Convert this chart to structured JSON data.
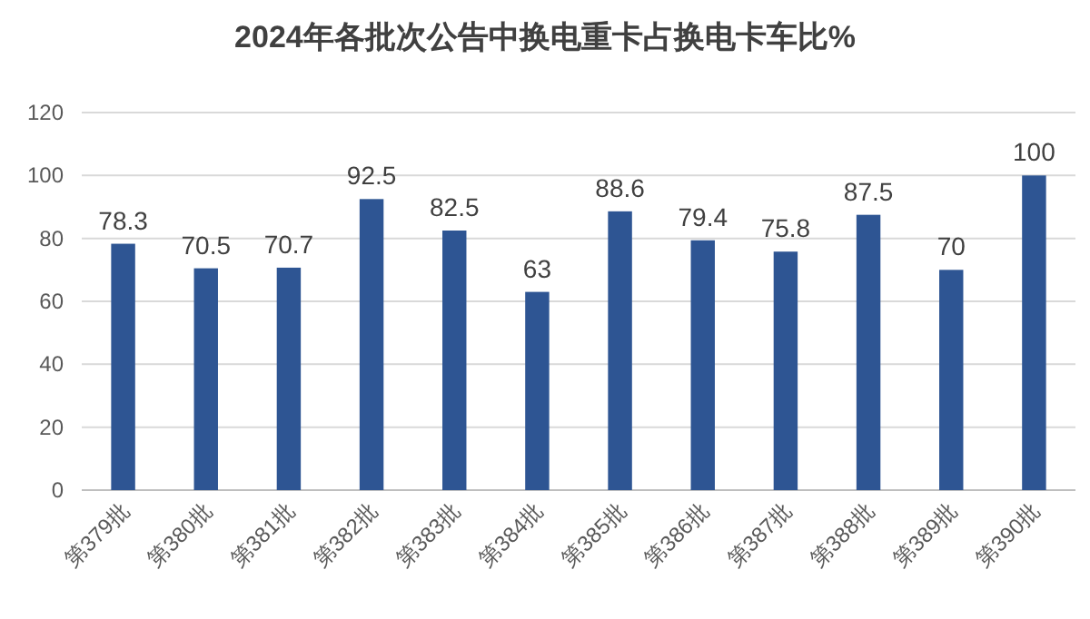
{
  "chart_data": {
    "type": "bar",
    "title": "2024年各批次公告中换电重卡占换电卡车比%",
    "categories": [
      "第379批",
      "第380批",
      "第381批",
      "第382批",
      "第383批",
      "第384批",
      "第385批",
      "第386批",
      "第387批",
      "第388批",
      "第389批",
      "第390批"
    ],
    "values": [
      78.3,
      70.5,
      70.7,
      92.5,
      82.5,
      63,
      88.6,
      79.4,
      75.8,
      87.5,
      70,
      100
    ],
    "color": "#2e5593",
    "ylim": [
      0,
      120
    ],
    "yticks": [
      0,
      20,
      40,
      60,
      80,
      100,
      120
    ],
    "grid": "y",
    "data_labels": true
  }
}
